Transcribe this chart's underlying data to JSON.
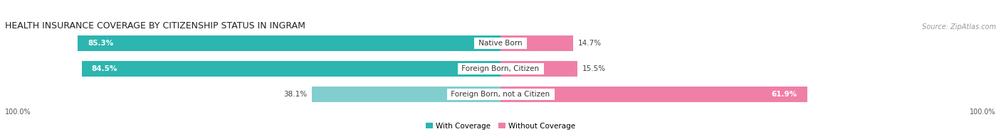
{
  "title": "HEALTH INSURANCE COVERAGE BY CITIZENSHIP STATUS IN INGRAM",
  "source": "Source: ZipAtlas.com",
  "categories": [
    "Native Born",
    "Foreign Born, Citizen",
    "Foreign Born, not a Citizen"
  ],
  "with_coverage": [
    85.3,
    84.5,
    38.1
  ],
  "without_coverage": [
    14.7,
    15.5,
    61.9
  ],
  "color_with": "#2db5b0",
  "color_without": "#f07fa8",
  "color_with_light": "#82cece",
  "color_without_light": "#f07fa8",
  "bg_color": "#ebebeb",
  "row_bg": "#f5f5f5",
  "title_fontsize": 9.0,
  "label_fontsize": 7.5,
  "legend_fontsize": 7.5,
  "source_fontsize": 7.0,
  "axis_label_fontsize": 7.0,
  "total_width": 100
}
